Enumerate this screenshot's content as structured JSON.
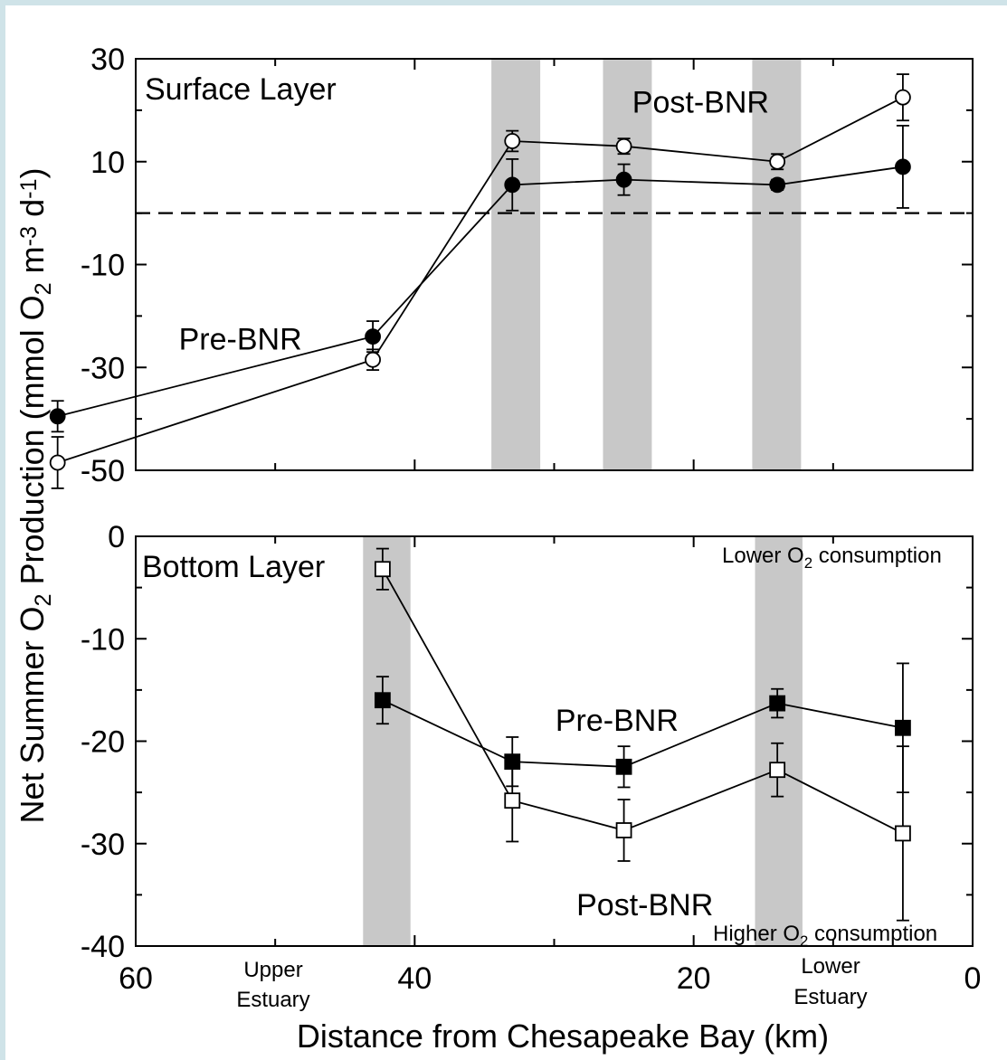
{
  "figure": {
    "ylabel_parts": [
      "Net Summer O",
      "2",
      " Production (mmol O",
      "2",
      " m",
      "-3",
      " d",
      "-1",
      ")"
    ],
    "xlabel": "Distance from Chesapeake Bay (km)",
    "x_ticks": [
      "60",
      "40",
      "20",
      "0"
    ],
    "region_labels": {
      "upper": [
        "Upper",
        "Estuary"
      ],
      "lower": [
        "Lower",
        "Estuary"
      ]
    }
  },
  "chart_data": [
    {
      "type": "line",
      "panel": "Surface Layer",
      "title": "Surface Layer",
      "xlabel": "Distance from Chesapeake Bay (km)",
      "ylabel": "Net Summer O2 Production (mmol O2 m-3 d-1)",
      "xlim": [
        60,
        0
      ],
      "ylim": [
        -50,
        30
      ],
      "y_ticks": [
        "30",
        "10",
        "-10",
        "-30",
        "-50"
      ],
      "y_tick_values": [
        30,
        10,
        -10,
        -30,
        -50
      ],
      "reference_line": 0,
      "shaded_ranges": [
        [
          34.5,
          31.0
        ],
        [
          26.5,
          23.0
        ],
        [
          15.8,
          12.3
        ]
      ],
      "series": [
        {
          "name": "Pre-BNR",
          "marker": "filled-circle",
          "x": [
            65.6,
            43.0,
            33.0,
            25.0,
            14.0,
            5.0
          ],
          "y": [
            -39.5,
            -24.0,
            5.5,
            6.5,
            5.5,
            9.0
          ],
          "err": [
            3.0,
            3.0,
            5.0,
            3.0,
            1.0,
            8.0
          ]
        },
        {
          "name": "Post-BNR",
          "marker": "open-circle",
          "x": [
            65.6,
            43.0,
            33.0,
            25.0,
            14.0,
            5.0
          ],
          "y": [
            -48.5,
            -28.5,
            14.0,
            13.0,
            10.0,
            22.5
          ],
          "err": [
            5.0,
            2.0,
            2.0,
            1.5,
            1.5,
            4.5
          ]
        }
      ],
      "annotations": [
        {
          "text": "Pre-BNR",
          "x": 52.5,
          "y": -26.5
        },
        {
          "text": "Post-BNR",
          "x": 19.5,
          "y": 19.5
        }
      ]
    },
    {
      "type": "line",
      "panel": "Bottom Layer",
      "title": "Bottom Layer",
      "xlabel": "Distance from Chesapeake Bay (km)",
      "ylabel": "Net Summer O2 Production (mmol O2 m-3 d-1)",
      "xlim": [
        60,
        0
      ],
      "ylim": [
        -40,
        0
      ],
      "y_ticks": [
        "0",
        "-10",
        "-20",
        "-30",
        "-40"
      ],
      "y_tick_values": [
        0,
        -10,
        -20,
        -30,
        -40
      ],
      "shaded_ranges": [
        [
          43.7,
          40.3
        ],
        [
          15.6,
          12.2
        ]
      ],
      "series": [
        {
          "name": "Pre-BNR",
          "marker": "filled-square",
          "x": [
            42.3,
            33.0,
            25.0,
            14.0,
            5.0
          ],
          "y": [
            -16.0,
            -22.0,
            -22.5,
            -16.3,
            -18.7
          ],
          "err": [
            2.3,
            2.4,
            2.0,
            1.4,
            6.3
          ]
        },
        {
          "name": "Post-BNR",
          "marker": "open-square",
          "x": [
            42.3,
            33.0,
            25.0,
            14.0,
            5.0
          ],
          "y": [
            -3.2,
            -25.8,
            -28.7,
            -22.8,
            -29.0
          ],
          "err": [
            2.0,
            4.0,
            3.0,
            2.6,
            8.5
          ]
        }
      ],
      "annotations": [
        {
          "text": "Pre-BNR",
          "x": 25.5,
          "y": -19.0
        },
        {
          "text": "Post-BNR",
          "x": 23.5,
          "y": -37.0
        }
      ],
      "corner_labels": {
        "top": [
          "Lower O",
          "2",
          " consumption"
        ],
        "bottom": [
          "Higher O",
          "2",
          " consumption"
        ]
      }
    }
  ]
}
